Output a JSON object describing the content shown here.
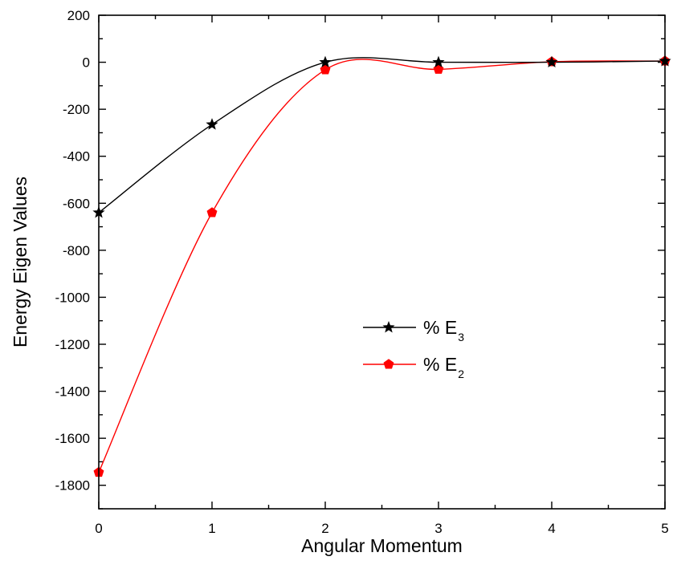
{
  "chart_data": {
    "type": "line",
    "title": "",
    "xlabel": "Angular Momentum",
    "ylabel": "Energy Eigen Values",
    "xlim": [
      0,
      5
    ],
    "ylim": [
      -1900,
      200
    ],
    "x_ticks": [
      0,
      1,
      2,
      3,
      4,
      5
    ],
    "y_ticks": [
      200,
      0,
      -200,
      -400,
      -600,
      -800,
      -1000,
      -1200,
      -1400,
      -1600,
      -1800
    ],
    "grid": false,
    "legend_position": "center",
    "x": [
      0,
      1,
      2,
      3,
      4,
      5
    ],
    "series": [
      {
        "name": "% E",
        "subscript": "3",
        "color": "#000000",
        "marker": "star",
        "values": [
          -640,
          -265,
          0,
          0,
          0,
          5
        ]
      },
      {
        "name": "% E",
        "subscript": "2",
        "color": "#ff0000",
        "marker": "pentagon",
        "values": [
          -1745,
          -640,
          -32,
          -30,
          2,
          5
        ]
      }
    ]
  }
}
